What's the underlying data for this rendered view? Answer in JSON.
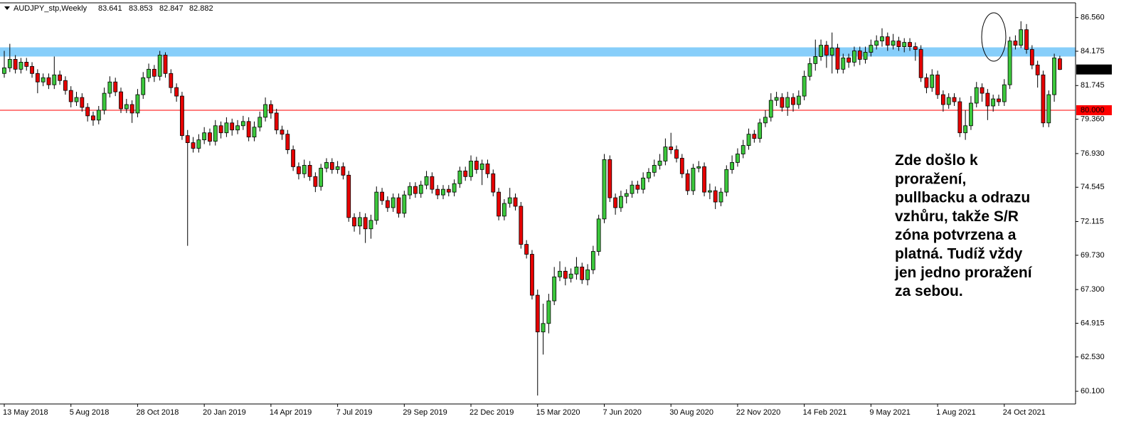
{
  "chart_data": {
    "type": "candlestick",
    "symbol": "AUDJPY_stp,Weekly",
    "annotation": [
      "Zde došlo k",
      "proražení,",
      "pullbacku a odrazu",
      "vzhůru, takže S/R",
      "zóna potvrzena a",
      "platná. Tudíž vždy",
      "jen jedno proražení",
      "za sebou."
    ],
    "categories": [
      "13 May 2018",
      null,
      null,
      null,
      null,
      null,
      null,
      null,
      null,
      null,
      null,
      null,
      "5 Aug 2018",
      null,
      null,
      null,
      null,
      null,
      null,
      null,
      null,
      null,
      null,
      null,
      "28 Oct 2018",
      null,
      null,
      null,
      null,
      null,
      null,
      null,
      null,
      null,
      null,
      null,
      "20 Jan 2019",
      null,
      null,
      null,
      null,
      null,
      null,
      null,
      null,
      null,
      null,
      null,
      "14 Apr 2019",
      null,
      null,
      null,
      null,
      null,
      null,
      null,
      null,
      null,
      null,
      null,
      "7 Jul 2019",
      null,
      null,
      null,
      null,
      null,
      null,
      null,
      null,
      null,
      null,
      null,
      "29 Sep 2019",
      null,
      null,
      null,
      null,
      null,
      null,
      null,
      null,
      null,
      null,
      null,
      "22 Dec 2019",
      null,
      null,
      null,
      null,
      null,
      null,
      null,
      null,
      null,
      null,
      null,
      "15 Mar 2020",
      null,
      null,
      null,
      null,
      null,
      null,
      null,
      null,
      null,
      null,
      null,
      "7 Jun 2020",
      null,
      null,
      null,
      null,
      null,
      null,
      null,
      null,
      null,
      null,
      null,
      "30 Aug 2020",
      null,
      null,
      null,
      null,
      null,
      null,
      null,
      null,
      null,
      null,
      null,
      "22 Nov 2020",
      null,
      null,
      null,
      null,
      null,
      null,
      null,
      null,
      null,
      null,
      null,
      "14 Feb 2021",
      null,
      null,
      null,
      null,
      null,
      null,
      null,
      null,
      null,
      null,
      null,
      "9 May 2021",
      null,
      null,
      null,
      null,
      null,
      null,
      null,
      null,
      null,
      null,
      null,
      "1 Aug 2021",
      null,
      null,
      null,
      null,
      null,
      null,
      null,
      null,
      null,
      null,
      null,
      "24 Oct 2021",
      null,
      null,
      null,
      null,
      null,
      null,
      null,
      null,
      null,
      null
    ],
    "open": [
      82.6,
      83.0,
      83.6,
      82.9,
      83.4,
      83.1,
      82.6,
      82.0,
      82.3,
      81.8,
      82.5,
      82.1,
      81.4,
      80.6,
      80.9,
      80.2,
      79.6,
      79.3,
      80.0,
      81.2,
      82.0,
      81.3,
      80.1,
      80.4,
      79.8,
      81.1,
      82.3,
      82.9,
      82.4,
      83.9,
      82.6,
      81.6,
      81.0,
      78.2,
      77.7,
      77.3,
      77.9,
      78.4,
      77.8,
      78.9,
      78.4,
      79.1,
      78.6,
      78.9,
      79.2,
      78.1,
      78.8,
      79.5,
      80.4,
      79.8,
      78.6,
      78.3,
      77.2,
      76.0,
      75.5,
      76.1,
      75.3,
      74.6,
      75.9,
      76.3,
      75.8,
      76.0,
      75.4,
      72.4,
      71.8,
      72.4,
      71.6,
      72.2,
      74.2,
      73.6,
      73.1,
      73.8,
      72.7,
      74.0,
      74.6,
      74.1,
      74.7,
      75.3,
      74.4,
      74.0,
      74.4,
      74.2,
      74.8,
      75.7,
      75.3,
      76.4,
      75.8,
      76.2,
      75.5,
      74.2,
      72.5,
      73.4,
      73.8,
      73.2,
      70.5,
      69.8,
      66.9,
      64.3,
      64.9,
      66.5,
      68.2,
      68.6,
      68.1,
      68.4,
      68.9,
      68.0,
      68.7,
      70.0,
      72.3,
      76.5,
      73.8,
      73.1,
      73.9,
      74.1,
      74.7,
      74.4,
      75.2,
      75.6,
      76.1,
      76.4,
      77.4,
      77.2,
      76.6,
      75.5,
      74.3,
      75.9,
      76.0,
      74.2,
      74.3,
      73.5,
      74.2,
      75.8,
      76.3,
      76.9,
      77.5,
      78.3,
      78.0,
      79.1,
      79.5,
      80.7,
      80.9,
      80.2,
      80.9,
      80.4,
      81.0,
      82.4,
      83.3,
      83.8,
      84.6,
      83.9,
      84.4,
      82.9,
      83.7,
      83.4,
      84.2,
      83.6,
      84.1,
      84.6,
      84.9,
      85.2,
      84.6,
      84.9,
      84.5,
      84.8,
      84.5,
      84.3,
      82.3,
      81.6,
      82.5,
      81.1,
      80.4,
      80.9,
      80.6,
      78.4,
      78.9,
      80.5,
      81.6,
      81.2,
      80.3,
      80.8,
      80.6,
      81.8,
      84.9,
      84.6,
      85.7,
      84.3,
      83.2,
      82.5,
      79.1,
      81.1,
      83.641
    ],
    "high": [
      84.2,
      84.7,
      83.9,
      83.7,
      83.7,
      83.4,
      82.9,
      82.6,
      82.6,
      83.8,
      82.8,
      82.4,
      81.7,
      81.3,
      81.2,
      80.5,
      79.9,
      80.3,
      81.6,
      82.4,
      82.3,
      81.6,
      80.8,
      80.7,
      81.5,
      82.7,
      83.3,
      83.2,
      84.2,
      84.1,
      82.9,
      81.9,
      81.3,
      78.6,
      78.1,
      78.3,
      78.8,
      78.7,
      79.3,
      79.2,
      79.5,
      79.4,
      79.3,
      79.6,
      79.5,
      79.2,
      79.9,
      80.9,
      80.7,
      80.1,
      78.9,
      78.6,
      77.5,
      76.3,
      76.5,
      76.4,
      75.6,
      76.2,
      76.6,
      76.6,
      76.4,
      76.3,
      75.7,
      72.7,
      72.8,
      72.7,
      72.6,
      74.6,
      74.5,
      73.9,
      74.1,
      74.1,
      74.3,
      74.9,
      74.9,
      75.0,
      75.7,
      75.6,
      74.7,
      74.7,
      74.7,
      75.1,
      76.0,
      76.0,
      76.8,
      76.7,
      76.5,
      76.5,
      75.8,
      74.5,
      73.7,
      74.5,
      74.1,
      73.5,
      70.8,
      70.1,
      67.3,
      66.3,
      67.0,
      68.9,
      69.3,
      68.9,
      68.8,
      69.6,
      69.2,
      69.1,
      70.4,
      72.6,
      76.9,
      76.8,
      74.1,
      74.3,
      74.4,
      75.0,
      75.0,
      75.6,
      75.9,
      76.5,
      76.9,
      78.0,
      78.4,
      77.5,
      76.9,
      75.8,
      76.2,
      76.4,
      76.3,
      74.8,
      74.6,
      74.5,
      76.1,
      76.8,
      77.3,
      77.9,
      78.7,
      78.6,
      79.4,
      80.0,
      81.2,
      81.3,
      81.2,
      81.3,
      81.2,
      81.4,
      82.8,
      83.7,
      85.0,
      85.0,
      84.9,
      85.5,
      84.7,
      84.0,
      84.0,
      84.5,
      84.5,
      84.5,
      85.0,
      85.3,
      85.8,
      85.5,
      85.4,
      85.2,
      85.1,
      85.1,
      84.8,
      84.6,
      82.6,
      82.9,
      82.8,
      81.4,
      81.2,
      81.2,
      80.9,
      80.0,
      81.0,
      82.0,
      81.9,
      81.5,
      81.1,
      81.1,
      82.2,
      85.2,
      85.3,
      86.3,
      86.1,
      84.6,
      83.5,
      82.8,
      81.4,
      84.0,
      83.853
    ],
    "low": [
      82.3,
      82.7,
      82.6,
      82.6,
      82.8,
      82.3,
      81.2,
      81.7,
      81.5,
      81.5,
      81.8,
      81.1,
      80.2,
      80.3,
      79.9,
      79.2,
      78.9,
      79.0,
      79.7,
      80.9,
      81.0,
      79.8,
      79.8,
      79.1,
      79.5,
      80.8,
      82.0,
      82.0,
      82.1,
      82.3,
      81.2,
      80.6,
      77.9,
      70.4,
      77.0,
      77.0,
      77.6,
      77.5,
      77.5,
      78.0,
      78.1,
      78.2,
      78.3,
      78.6,
      77.8,
      77.8,
      78.5,
      79.2,
      79.4,
      78.3,
      77.9,
      76.9,
      75.7,
      75.1,
      75.2,
      75.0,
      74.2,
      74.3,
      75.6,
      75.5,
      75.5,
      75.1,
      72.1,
      71.4,
      71.2,
      70.6,
      70.9,
      71.9,
      73.3,
      72.8,
      72.8,
      72.4,
      72.4,
      73.7,
      73.8,
      73.8,
      74.4,
      74.1,
      73.7,
      73.7,
      73.9,
      73.9,
      74.5,
      75.0,
      75.0,
      75.5,
      74.7,
      75.2,
      73.9,
      72.2,
      72.2,
      73.1,
      72.9,
      70.2,
      69.5,
      66.6,
      59.8,
      62.7,
      64.2,
      66.2,
      67.9,
      67.6,
      67.8,
      68.0,
      67.7,
      67.6,
      68.4,
      69.7,
      72.0,
      73.5,
      72.6,
      72.8,
      73.4,
      73.8,
      74.1,
      74.1,
      74.9,
      75.3,
      75.8,
      76.1,
      76.9,
      76.3,
      75.2,
      74.0,
      74.0,
      75.6,
      73.9,
      73.7,
      73.0,
      73.2,
      73.9,
      75.5,
      76.0,
      76.6,
      77.2,
      77.7,
      77.7,
      78.8,
      79.2,
      80.3,
      79.9,
      79.6,
      79.9,
      80.1,
      80.7,
      82.1,
      82.8,
      83.5,
      83.0,
      82.6,
      82.6,
      82.6,
      83.0,
      83.1,
      83.2,
      83.3,
      83.8,
      84.3,
      84.5,
      84.2,
      84.3,
      84.2,
      84.1,
      84.2,
      83.5,
      82.0,
      81.2,
      81.3,
      80.8,
      79.9,
      80.1,
      80.3,
      78.1,
      77.9,
      78.6,
      80.2,
      80.6,
      79.3,
      79.9,
      80.3,
      80.3,
      81.5,
      84.3,
      84.4,
      84.0,
      82.9,
      81.6,
      78.8,
      78.8,
      80.6,
      82.847
    ],
    "close": [
      83.0,
      83.6,
      82.9,
      83.4,
      83.1,
      82.6,
      82.0,
      82.3,
      81.8,
      82.5,
      82.1,
      81.4,
      80.6,
      80.9,
      80.2,
      79.6,
      79.3,
      80.0,
      81.2,
      82.0,
      81.3,
      80.1,
      80.4,
      79.8,
      81.1,
      82.3,
      82.9,
      82.4,
      83.9,
      82.6,
      81.6,
      81.0,
      78.2,
      77.7,
      77.3,
      77.9,
      78.4,
      77.8,
      78.9,
      78.4,
      79.1,
      78.6,
      78.9,
      79.2,
      78.1,
      78.8,
      79.5,
      80.4,
      79.8,
      78.6,
      78.3,
      77.2,
      76.0,
      75.5,
      76.1,
      75.3,
      74.6,
      75.9,
      76.3,
      75.8,
      76.0,
      75.4,
      72.4,
      71.8,
      72.4,
      71.6,
      72.2,
      74.2,
      73.6,
      73.1,
      73.8,
      72.7,
      74.0,
      74.6,
      74.1,
      74.7,
      75.3,
      74.4,
      74.0,
      74.4,
      74.2,
      74.8,
      75.7,
      75.3,
      76.4,
      75.8,
      76.2,
      75.5,
      74.2,
      72.5,
      73.4,
      73.8,
      73.2,
      70.5,
      69.8,
      66.9,
      64.3,
      64.9,
      66.5,
      68.2,
      68.6,
      68.1,
      68.4,
      68.9,
      68.0,
      68.7,
      70.0,
      72.3,
      76.5,
      73.8,
      73.1,
      73.9,
      74.1,
      74.7,
      74.4,
      75.2,
      75.6,
      76.1,
      76.4,
      77.4,
      77.2,
      76.6,
      75.5,
      74.3,
      75.9,
      76.0,
      74.2,
      74.3,
      73.5,
      74.2,
      75.8,
      76.3,
      76.9,
      77.5,
      78.3,
      78.0,
      79.1,
      79.5,
      80.7,
      80.9,
      80.2,
      80.9,
      80.4,
      81.0,
      82.4,
      83.3,
      83.8,
      84.6,
      83.9,
      84.4,
      82.9,
      83.7,
      83.4,
      84.2,
      83.6,
      84.1,
      84.6,
      84.9,
      85.2,
      84.6,
      84.9,
      84.5,
      84.8,
      84.5,
      84.3,
      82.3,
      81.6,
      82.5,
      81.1,
      80.4,
      80.9,
      80.6,
      78.4,
      78.9,
      80.5,
      81.6,
      81.2,
      80.3,
      80.8,
      80.6,
      81.8,
      84.9,
      84.6,
      85.7,
      84.3,
      83.2,
      82.5,
      79.1,
      81.1,
      83.7,
      82.882
    ],
    "up_color": "#3cc83c",
    "down_color": "#e60000",
    "ylim": [
      59.2,
      87.5
    ],
    "yticks": [
      {
        "value": 86.56,
        "label": "86.560"
      },
      {
        "value": 84.175,
        "label": "84.175"
      },
      {
        "value": 81.745,
        "label": "81.745"
      },
      {
        "value": 79.36,
        "label": "79.360"
      },
      {
        "value": 76.93,
        "label": "76.930"
      },
      {
        "value": 74.545,
        "label": "74.545"
      },
      {
        "value": 72.115,
        "label": "72.115"
      },
      {
        "value": 69.73,
        "label": "69.730"
      },
      {
        "value": 67.3,
        "label": "67.300"
      },
      {
        "value": 64.915,
        "label": "64.915"
      },
      {
        "value": 62.53,
        "label": "62.530"
      },
      {
        "value": 60.1,
        "label": "60.100"
      }
    ],
    "sr_zone": [
      83.8,
      84.45
    ],
    "zone_color": "#87cefa",
    "level": {
      "value": 80,
      "label": "80.000"
    },
    "level_color": "#ff0000",
    "grid": false
  }
}
